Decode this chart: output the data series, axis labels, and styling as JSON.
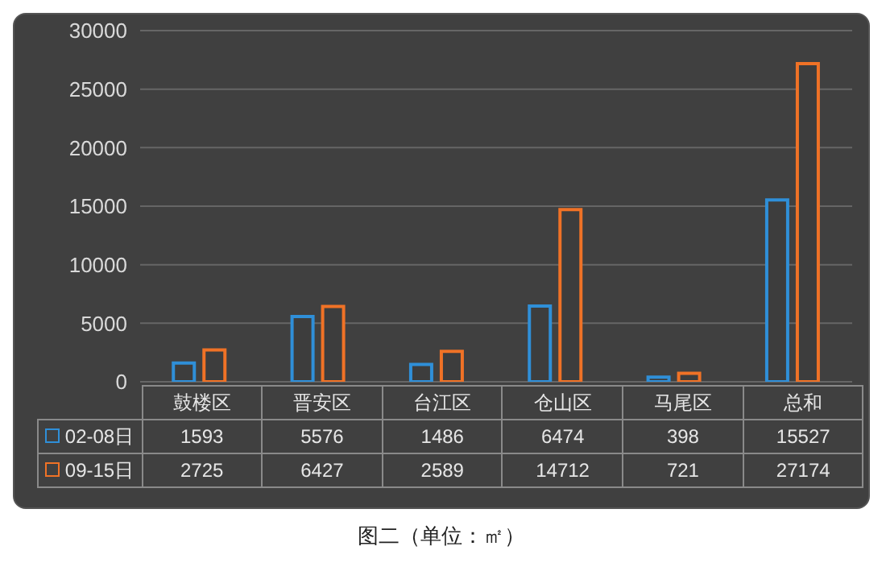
{
  "chart_data": {
    "type": "bar",
    "categories": [
      "鼓楼区",
      "晋安区",
      "台江区",
      "仓山区",
      "马尾区",
      "总和"
    ],
    "series": [
      {
        "name": "02-08日",
        "color": "#2f8fd8",
        "values": [
          1593,
          5576,
          1486,
          6474,
          398,
          15527
        ]
      },
      {
        "name": "09-15日",
        "color": "#f07226",
        "values": [
          2725,
          6427,
          2589,
          14712,
          721,
          27174
        ]
      }
    ],
    "ylim": [
      0,
      30000
    ],
    "yticks": [
      0,
      5000,
      10000,
      15000,
      20000,
      25000,
      30000
    ],
    "grid": "y",
    "legend": "bottom",
    "data_labels": true,
    "annotations": [
      "图二（单位：㎡）"
    ]
  }
}
